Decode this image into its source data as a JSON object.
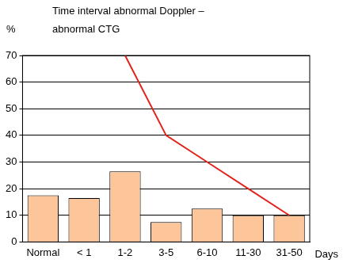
{
  "chart_data": {
    "type": "bar",
    "title": [
      "Time interval abnormal Doppler –",
      "abnormal CTG"
    ],
    "y_label": "%",
    "x_label": "Days",
    "categories": [
      "Normal",
      "< 1",
      "1-2",
      "3-5",
      "6-10",
      "11-30",
      "31-50"
    ],
    "series": [
      {
        "type": "bar",
        "color": "#fcc59a",
        "values": [
          17.5,
          16.5,
          26.5,
          7.5,
          12.5,
          10,
          10
        ]
      },
      {
        "type": "line",
        "color": "#e3231b",
        "values": [
          null,
          null,
          70,
          40,
          30,
          20,
          10
        ]
      }
    ],
    "ylim": [
      0,
      70
    ],
    "yticks": [
      0,
      10,
      20,
      30,
      40,
      50,
      60,
      70
    ],
    "grid": true
  }
}
